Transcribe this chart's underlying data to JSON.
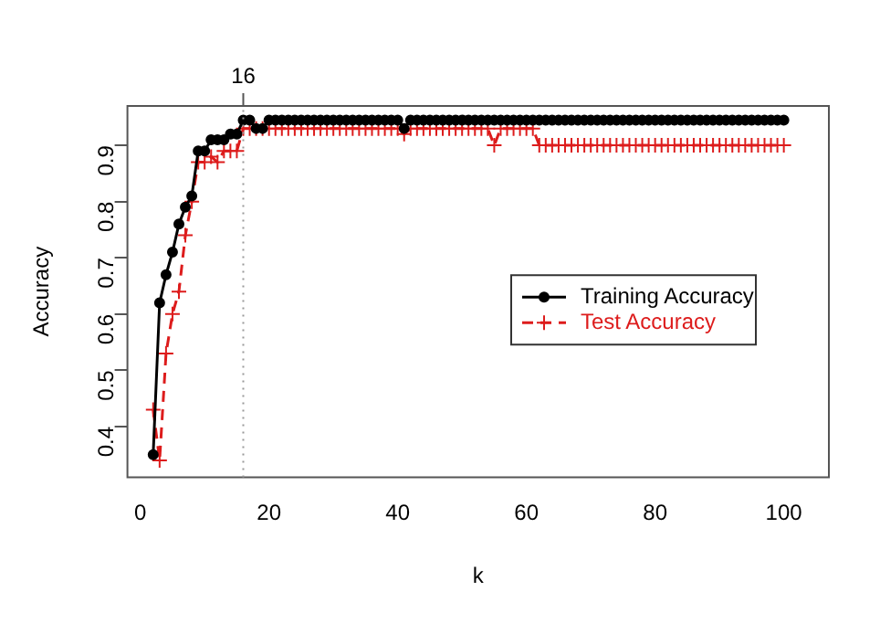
{
  "chart_data": {
    "type": "line",
    "xlabel": "k",
    "ylabel": "Accuracy",
    "x": [
      2,
      3,
      4,
      5,
      6,
      7,
      8,
      9,
      10,
      11,
      12,
      13,
      14,
      15,
      16,
      17,
      18,
      19,
      20,
      21,
      22,
      23,
      24,
      25,
      26,
      27,
      28,
      29,
      30,
      31,
      32,
      33,
      34,
      35,
      36,
      37,
      38,
      39,
      40,
      41,
      42,
      43,
      44,
      45,
      46,
      47,
      48,
      49,
      50,
      51,
      52,
      53,
      54,
      55,
      56,
      57,
      58,
      59,
      60,
      61,
      62,
      63,
      64,
      65,
      66,
      67,
      68,
      69,
      70,
      71,
      72,
      73,
      74,
      75,
      76,
      77,
      78,
      79,
      80,
      81,
      82,
      83,
      84,
      85,
      86,
      87,
      88,
      89,
      90,
      91,
      92,
      93,
      94,
      95,
      96,
      97,
      98,
      99,
      100
    ],
    "series": [
      {
        "name": "Training Accuracy",
        "color": "#000000",
        "marker": "circle",
        "line_style": "solid",
        "values": [
          0.35,
          0.62,
          0.67,
          0.71,
          0.76,
          0.79,
          0.81,
          0.89,
          0.89,
          0.91,
          0.91,
          0.91,
          0.92,
          0.92,
          0.945,
          0.945,
          0.93,
          0.93,
          0.945,
          0.945,
          0.945,
          0.945,
          0.945,
          0.945,
          0.945,
          0.945,
          0.945,
          0.945,
          0.945,
          0.945,
          0.945,
          0.945,
          0.945,
          0.945,
          0.945,
          0.945,
          0.945,
          0.945,
          0.945,
          0.93,
          0.945,
          0.945,
          0.945,
          0.945,
          0.945,
          0.945,
          0.945,
          0.945,
          0.945,
          0.945,
          0.945,
          0.945,
          0.945,
          0.945,
          0.945,
          0.945,
          0.945,
          0.945,
          0.945,
          0.945,
          0.945,
          0.945,
          0.945,
          0.945,
          0.945,
          0.945,
          0.945,
          0.945,
          0.945,
          0.945,
          0.945,
          0.945,
          0.945,
          0.945,
          0.945,
          0.945,
          0.945,
          0.945,
          0.945,
          0.945,
          0.945,
          0.945,
          0.945,
          0.945,
          0.945,
          0.945,
          0.945,
          0.945,
          0.945,
          0.945,
          0.945,
          0.945,
          0.945,
          0.945,
          0.945,
          0.945,
          0.945,
          0.945,
          0.945
        ]
      },
      {
        "name": "Test Accuracy",
        "color": "#dd1c1c",
        "marker": "cross",
        "line_style": "dashed",
        "values": [
          0.43,
          0.34,
          0.53,
          0.6,
          0.64,
          0.74,
          0.8,
          0.87,
          0.87,
          0.88,
          0.87,
          0.89,
          0.89,
          0.89,
          0.93,
          0.93,
          0.93,
          0.93,
          0.93,
          0.93,
          0.93,
          0.93,
          0.93,
          0.93,
          0.93,
          0.93,
          0.93,
          0.93,
          0.93,
          0.93,
          0.93,
          0.93,
          0.93,
          0.93,
          0.93,
          0.93,
          0.93,
          0.93,
          0.93,
          0.92,
          0.93,
          0.93,
          0.93,
          0.93,
          0.93,
          0.93,
          0.93,
          0.93,
          0.93,
          0.93,
          0.93,
          0.93,
          0.93,
          0.9,
          0.93,
          0.93,
          0.93,
          0.93,
          0.93,
          0.93,
          0.9,
          0.9,
          0.9,
          0.9,
          0.9,
          0.9,
          0.9,
          0.9,
          0.9,
          0.9,
          0.9,
          0.9,
          0.9,
          0.9,
          0.9,
          0.9,
          0.9,
          0.9,
          0.9,
          0.9,
          0.9,
          0.9,
          0.9,
          0.9,
          0.9,
          0.9,
          0.9,
          0.9,
          0.9,
          0.9,
          0.9,
          0.9,
          0.9,
          0.9,
          0.9,
          0.9,
          0.9,
          0.9,
          0.9
        ]
      }
    ],
    "xlim": [
      -2,
      107
    ],
    "xticks": [
      0,
      20,
      40,
      60,
      80,
      100
    ],
    "ylim": [
      0.31,
      0.97
    ],
    "yticks": [
      0.4,
      0.5,
      0.6,
      0.7,
      0.8,
      0.9
    ],
    "ref_lines": [
      {
        "axis": "x",
        "value": 16,
        "label": "16",
        "color": "#999999",
        "line_style": "dotted"
      }
    ],
    "grid": false,
    "legend": "right"
  }
}
